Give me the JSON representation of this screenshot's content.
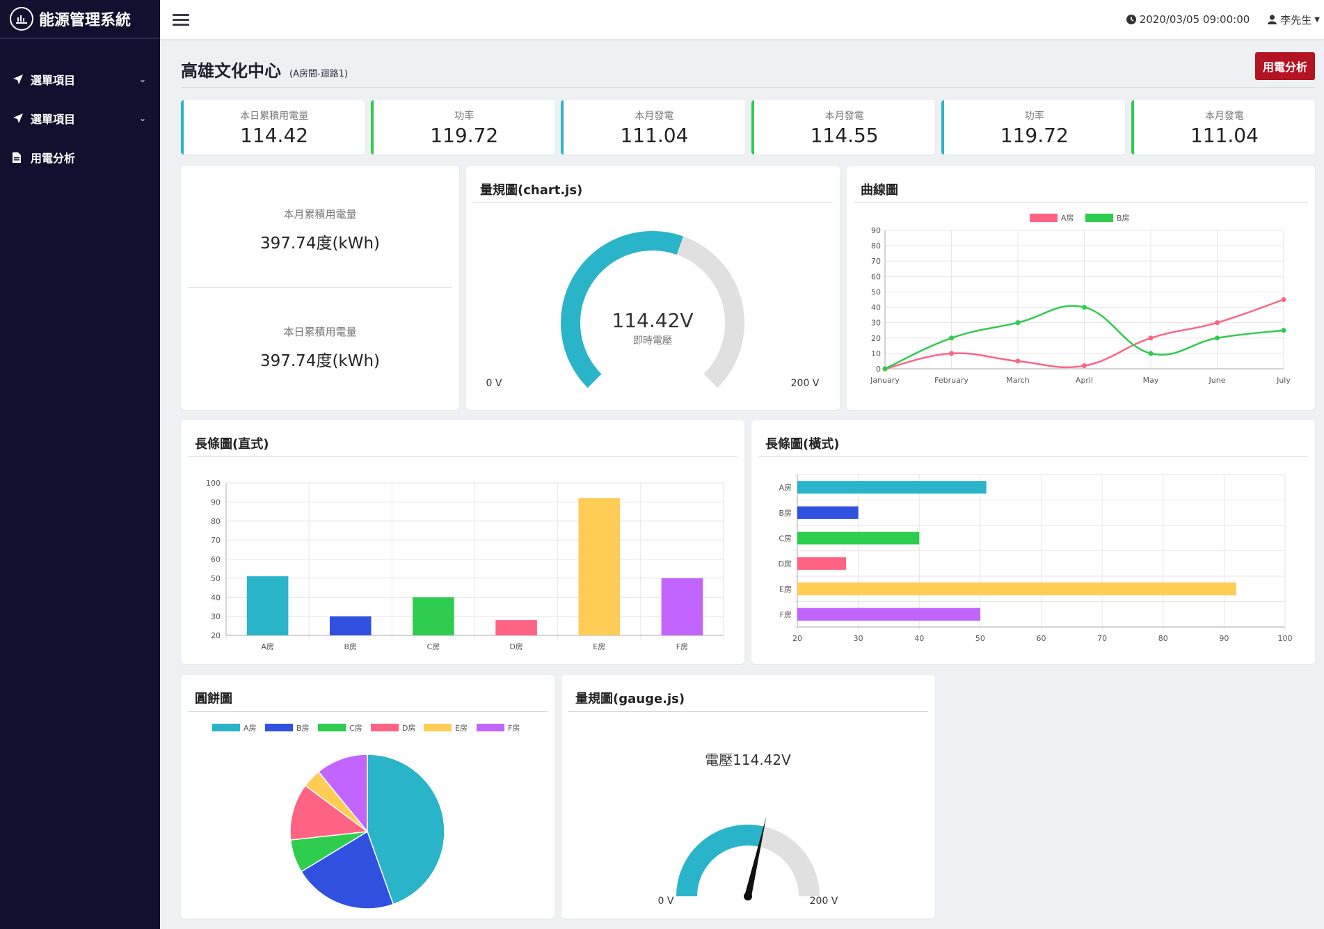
{
  "app": {
    "title": "能源管理系統"
  },
  "sidebar": {
    "items": [
      {
        "label": "選單項目",
        "icon": "paper-plane-icon",
        "has_submenu": true
      },
      {
        "label": "選單項目",
        "icon": "paper-plane-icon",
        "has_submenu": true
      },
      {
        "label": "用電分析",
        "icon": "file-icon",
        "has_submenu": false
      }
    ]
  },
  "topbar": {
    "datetime": "2020/03/05 09:00:00",
    "user": "李先生"
  },
  "page": {
    "title": "高雄文化中心",
    "subtitle": "(A房間-迴路1)",
    "action_button": "用電分析"
  },
  "stats": [
    {
      "label": "本日累積用電量",
      "value": "114.42",
      "accent": "#2ab4c9"
    },
    {
      "label": "功率",
      "value": "119.72",
      "accent": "#2ecc4f"
    },
    {
      "label": "本月發電",
      "value": "111.04",
      "accent": "#2ab4c9"
    },
    {
      "label": "本月發電",
      "value": "114.55",
      "accent": "#2ecc4f"
    },
    {
      "label": "功率",
      "value": "119.72",
      "accent": "#2ab4c9"
    },
    {
      "label": "本月發電",
      "value": "111.04",
      "accent": "#2ecc4f"
    }
  ],
  "summary": {
    "month": {
      "label": "本月累積用電量",
      "value": "397.74度(kWh)"
    },
    "day": {
      "label": "本日累積用電量",
      "value": "397.74度(kWh)"
    }
  },
  "gauge_chartjs": {
    "title": "量規圖(chart.js)",
    "value_text": "114.42V",
    "caption": "即時電壓",
    "min_label": "0 V",
    "max_label": "200 V",
    "value": 114.42,
    "max": 200
  },
  "gauge_gaugejs": {
    "title": "量規圖(gauge.js)",
    "value_text": "電壓114.42V",
    "min_label": "0 V",
    "max_label": "200 V",
    "value": 114.42,
    "max": 200
  },
  "line_card": {
    "title": "曲線圖"
  },
  "vbar_card": {
    "title": "長條圖(直式)"
  },
  "hbar_card": {
    "title": "長條圖(橫式)"
  },
  "pie_card": {
    "title": "圓餅圖"
  },
  "colors": {
    "A": "#2ab4c9",
    "B": "#3050e0",
    "C": "#2ecc4f",
    "D": "#ff6384",
    "E": "#ffcd56",
    "F": "#c264fe",
    "gauge_bg": "#e0e0e0",
    "brand_red": "#b31322",
    "sidebar_bg": "#12102e"
  },
  "chart_data": [
    {
      "type": "line",
      "categories": [
        "January",
        "February",
        "March",
        "April",
        "May",
        "June",
        "July"
      ],
      "series": [
        {
          "name": "A房",
          "values": [
            0,
            10,
            5,
            2,
            20,
            30,
            45
          ],
          "color": "#ff6384"
        },
        {
          "name": "B房",
          "values": [
            0,
            20,
            30,
            40,
            10,
            20,
            25
          ],
          "color": "#2ecc4f"
        }
      ],
      "ylim": [
        0,
        90
      ],
      "yticks": [
        0,
        10,
        20,
        30,
        40,
        50,
        60,
        70,
        80,
        90
      ],
      "legend": "top-center",
      "grid": true
    },
    {
      "type": "bar",
      "orientation": "vertical",
      "categories": [
        "A房",
        "B房",
        "C房",
        "D房",
        "E房",
        "F房"
      ],
      "values": [
        51,
        30,
        40,
        28,
        92,
        50
      ],
      "ylim": [
        20,
        100
      ],
      "yticks": [
        20,
        30,
        40,
        50,
        60,
        70,
        80,
        90,
        100
      ],
      "grid": true
    },
    {
      "type": "bar",
      "orientation": "horizontal",
      "categories": [
        "A房",
        "B房",
        "C房",
        "D房",
        "E房",
        "F房"
      ],
      "values": [
        51,
        30,
        40,
        28,
        92,
        50
      ],
      "xlim": [
        20,
        100
      ],
      "xticks": [
        20,
        30,
        40,
        50,
        60,
        70,
        80,
        90,
        100
      ],
      "grid": true
    },
    {
      "type": "pie",
      "categories": [
        "A房",
        "B房",
        "C房",
        "D房",
        "E房",
        "F房"
      ],
      "values": [
        45,
        22,
        7,
        12,
        4,
        11
      ],
      "legend": "top-center"
    }
  ]
}
